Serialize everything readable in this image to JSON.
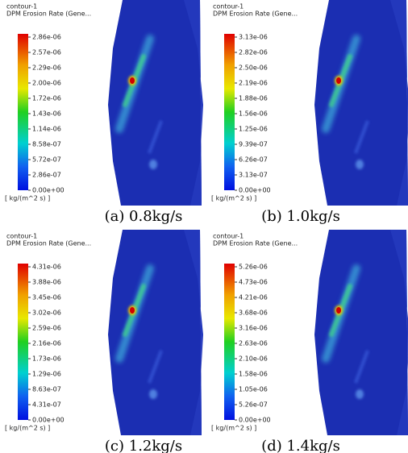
{
  "panels": [
    {
      "title": "contour-1",
      "subtitle": "DPM Erosion Rate (Gene...",
      "ticks": [
        "2.86e-06",
        "2.57e-06",
        "2.29e-06",
        "2.00e-06",
        "1.72e-06",
        "1.43e-06",
        "1.14e-06",
        "8.58e-07",
        "5.72e-07",
        "2.86e-07",
        "0.00e+00"
      ],
      "unit": "[ kg/(m^2 s) ]",
      "caption": "(a)  0.8kg/s"
    },
    {
      "title": "contour-1",
      "subtitle": "DPM Erosion Rate (Gene...",
      "ticks": [
        "3.13e-06",
        "2.82e-06",
        "2.50e-06",
        "2.19e-06",
        "1.88e-06",
        "1.56e-06",
        "1.25e-06",
        "9.39e-07",
        "6.26e-07",
        "3.13e-07",
        "0.00e+00"
      ],
      "unit": "[ kg/(m^2 s) ]",
      "caption": "(b)  1.0kg/s"
    },
    {
      "title": "contour-1",
      "subtitle": "DPM Erosion Rate (Gene...",
      "ticks": [
        "4.31e-06",
        "3.88e-06",
        "3.45e-06",
        "3.02e-06",
        "2.59e-06",
        "2.16e-06",
        "1.73e-06",
        "1.29e-06",
        "8.63e-07",
        "4.31e-07",
        "0.00e+00"
      ],
      "unit": "[ kg/(m^2 s) ]",
      "caption": "(c)  1.2kg/s"
    },
    {
      "title": "contour-1",
      "subtitle": "DPM Erosion Rate (Gene...",
      "ticks": [
        "5.26e-06",
        "4.73e-06",
        "4.21e-06",
        "3.68e-06",
        "3.16e-06",
        "2.63e-06",
        "2.10e-06",
        "1.58e-06",
        "1.05e-06",
        "5.26e-07",
        "0.00e+00"
      ],
      "unit": "[ kg/(m^2 s) ]",
      "caption": "(d)  1.4kg/s"
    }
  ]
}
